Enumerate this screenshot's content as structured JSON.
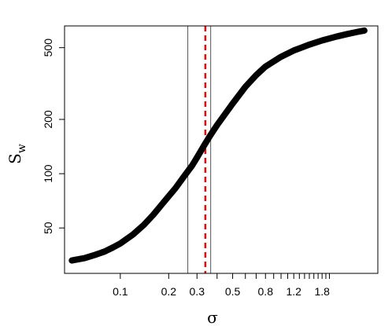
{
  "chart_data": {
    "type": "line",
    "x_scale": "log",
    "y_scale": "log",
    "xlim": [
      0.045,
      4.0
    ],
    "ylim": [
      28,
      660
    ],
    "x_ticks_labeled": [
      "0.1",
      "0.2",
      "0.3",
      "0.5",
      "0.8",
      "1.2",
      "1.8"
    ],
    "x_ticks_labeled_values": [
      0.1,
      0.2,
      0.3,
      0.5,
      0.8,
      1.2,
      1.8
    ],
    "x_ticks_minor_values": [
      0.4,
      0.6,
      0.7,
      0.9,
      1.0,
      1.1,
      1.3,
      1.4,
      1.5,
      1.6,
      1.7,
      1.9,
      2.0
    ],
    "y_ticks": [
      "50",
      "100",
      "200",
      "500"
    ],
    "y_ticks_values": [
      50,
      100,
      200,
      500
    ],
    "xlabel": "σ",
    "ylabel_main": "S",
    "ylabel_sub": "w",
    "grid": false,
    "legend": "none",
    "colors": {
      "curve": "#000000",
      "vline": "#555555",
      "dashed": "#ff0000"
    },
    "series": [
      {
        "x": [
          0.05,
          0.06,
          0.07,
          0.08,
          0.09,
          0.1,
          0.12,
          0.14,
          0.16,
          0.18,
          0.2,
          0.22,
          0.25,
          0.28,
          0.3,
          0.33,
          0.36,
          0.4,
          0.45,
          0.5,
          0.6,
          0.7,
          0.8,
          1.0,
          1.2,
          1.5,
          1.8,
          2.2,
          2.6,
          3.0,
          3.3
        ],
        "y": [
          33,
          34,
          35.5,
          37,
          39,
          41,
          46,
          52,
          59,
          67,
          75,
          83,
          97,
          111,
          123,
          142,
          161,
          186,
          215,
          245,
          303,
          352,
          393,
          445,
          482,
          520,
          548,
          575,
          596,
          612,
          622
        ]
      }
    ],
    "vertical_lines": [
      {
        "x": 0.263,
        "style": "solid",
        "color": "#555555"
      },
      {
        "x": 0.365,
        "style": "solid",
        "color": "#555555"
      },
      {
        "x": 0.338,
        "style": "dashed",
        "color": "#ff0000"
      }
    ]
  }
}
